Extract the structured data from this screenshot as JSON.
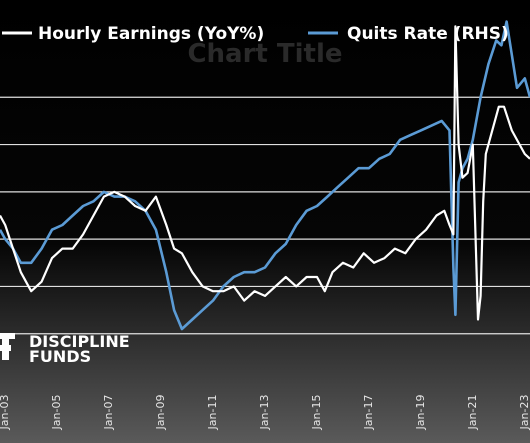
{
  "chart_data": {
    "type": "line",
    "title": "Chart Title",
    "watermark": {
      "line1": "DISCIPLINE",
      "line2": "FUNDS"
    },
    "legend": {
      "position": "top"
    },
    "grid": {
      "horizontal": true,
      "vertical": false
    },
    "x_ticks": [
      "Jan-03",
      "Jan-05",
      "Jan-07",
      "Jan-09",
      "Jan-11",
      "Jan-13",
      "Jan-15",
      "Jan-17",
      "Jan-19",
      "Jan-21",
      "Jan-23"
    ],
    "y_grid_values": [
      1.0,
      2.0,
      3.0,
      4.0,
      5.0,
      6.0
    ],
    "xlim": [
      2002.8,
      2023.2
    ],
    "ylim": [
      0.0,
      7.0
    ],
    "colors": {
      "earnings": "#ffffff",
      "quits": "#5b9bd5",
      "gridline": "#e0e0e0",
      "background_top": "#000000",
      "background_bottom": "#5a5a5a"
    },
    "series": [
      {
        "name": "Hourly Earnings (YoY%)",
        "color": "#ffffff",
        "x": [
          2002.8,
          2003.0,
          2003.3,
          2003.6,
          2004.0,
          2004.4,
          2004.8,
          2005.2,
          2005.6,
          2006.0,
          2006.4,
          2006.8,
          2007.2,
          2007.6,
          2008.0,
          2008.4,
          2008.8,
          2009.2,
          2009.5,
          2009.8,
          2010.2,
          2010.6,
          2011.0,
          2011.4,
          2011.8,
          2012.2,
          2012.6,
          2013.0,
          2013.4,
          2013.8,
          2014.2,
          2014.6,
          2015.0,
          2015.3,
          2015.6,
          2016.0,
          2016.4,
          2016.8,
          2017.2,
          2017.6,
          2018.0,
          2018.4,
          2018.8,
          2019.2,
          2019.6,
          2019.9,
          2020.1,
          2020.25,
          2020.33,
          2020.45,
          2020.6,
          2020.8,
          2021.0,
          2021.2,
          2021.3,
          2021.4,
          2021.5,
          2021.7,
          2022.0,
          2022.2,
          2022.5,
          2022.8,
          2023.0,
          2023.2
        ],
        "values": [
          3.5,
          3.3,
          2.8,
          2.3,
          1.9,
          2.1,
          2.6,
          2.8,
          2.8,
          3.1,
          3.5,
          3.9,
          4.0,
          3.9,
          3.7,
          3.6,
          3.9,
          3.3,
          2.8,
          2.7,
          2.3,
          2.0,
          1.9,
          1.9,
          2.0,
          1.7,
          1.9,
          1.8,
          2.0,
          2.2,
          2.0,
          2.2,
          2.2,
          1.9,
          2.3,
          2.5,
          2.4,
          2.7,
          2.5,
          2.6,
          2.8,
          2.7,
          3.0,
          3.2,
          3.5,
          3.6,
          3.3,
          3.1,
          7.5,
          5.0,
          4.3,
          4.4,
          5.0,
          1.3,
          1.8,
          3.8,
          4.8,
          5.2,
          5.8,
          5.8,
          5.3,
          5.0,
          4.8,
          4.7
        ]
      },
      {
        "name": "Quits Rate (RHS)",
        "color": "#5b9bd5",
        "x": [
          2002.8,
          2003.0,
          2003.3,
          2003.6,
          2004.0,
          2004.4,
          2004.8,
          2005.2,
          2005.6,
          2006.0,
          2006.4,
          2006.8,
          2007.2,
          2007.6,
          2008.0,
          2008.4,
          2008.8,
          2009.2,
          2009.5,
          2009.8,
          2010.2,
          2010.6,
          2011.0,
          2011.4,
          2011.8,
          2012.2,
          2012.6,
          2013.0,
          2013.4,
          2013.8,
          2014.2,
          2014.6,
          2015.0,
          2015.4,
          2015.8,
          2016.2,
          2016.6,
          2017.0,
          2017.4,
          2017.8,
          2018.2,
          2018.6,
          2019.0,
          2019.4,
          2019.8,
          2020.1,
          2020.25,
          2020.33,
          2020.45,
          2020.6,
          2020.8,
          2021.0,
          2021.3,
          2021.6,
          2021.9,
          2022.1,
          2022.3,
          2022.5,
          2022.7,
          2023.0,
          2023.2
        ],
        "values": [
          3.2,
          3.0,
          2.8,
          2.5,
          2.5,
          2.8,
          3.2,
          3.3,
          3.5,
          3.7,
          3.8,
          4.0,
          3.9,
          3.9,
          3.8,
          3.6,
          3.2,
          2.3,
          1.5,
          1.1,
          1.3,
          1.5,
          1.7,
          2.0,
          2.2,
          2.3,
          2.3,
          2.4,
          2.7,
          2.9,
          3.3,
          3.6,
          3.7,
          3.9,
          4.1,
          4.3,
          4.5,
          4.5,
          4.7,
          4.8,
          5.1,
          5.2,
          5.3,
          5.4,
          5.5,
          5.3,
          2.4,
          1.4,
          4.2,
          4.5,
          4.7,
          5.1,
          6.0,
          6.7,
          7.2,
          7.1,
          7.6,
          6.9,
          6.2,
          6.4,
          6.0
        ]
      }
    ]
  }
}
